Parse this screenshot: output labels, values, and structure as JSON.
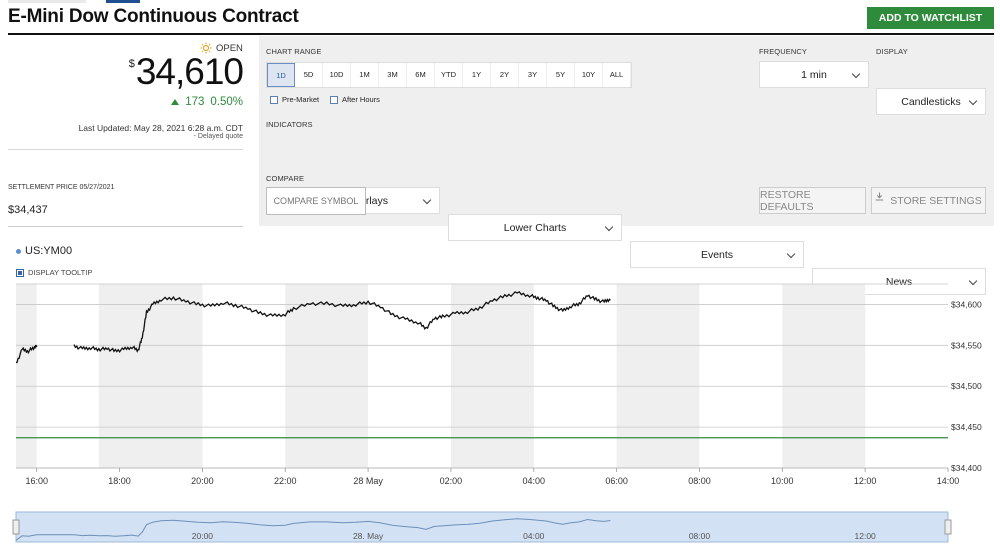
{
  "header": {
    "title": "E-Mini Dow Continuous Contract",
    "watchlist_button": "ADD TO WATCHLIST",
    "tab_colors": [
      "#e9e9e9",
      "#1d4f91"
    ]
  },
  "quote": {
    "status": "OPEN",
    "currency": "$",
    "price": "34,610",
    "change": "173",
    "change_pct": "0.50%",
    "last_updated": "Last Updated: May 28, 2021 6:28 a.m. CDT",
    "delayed": "- Delayed quote",
    "settlement_label": "SETTLEMENT PRICE 05/27/2021",
    "settlement_value": "$34,437",
    "up_color": "#2e8b3c"
  },
  "controls": {
    "chart_range_label": "CHART RANGE",
    "ranges": [
      "1D",
      "5D",
      "10D",
      "1M",
      "3M",
      "6M",
      "YTD",
      "1Y",
      "2Y",
      "3Y",
      "5Y",
      "10Y",
      "ALL"
    ],
    "active_range": "1D",
    "pre_market": "Pre-Market",
    "after_hours": "After Hours",
    "frequency_label": "FREQUENCY",
    "frequency_value": "1 min",
    "display_label": "DISPLAY",
    "display_value": "Candlesticks",
    "indicators_label": "INDICATORS",
    "indicators": [
      "Chart Overlays",
      "Lower Charts",
      "Events",
      "News"
    ],
    "compare_label": "COMPARE",
    "compare_placeholder": "COMPARE SYMBOL",
    "restore_defaults": "RESTORE DEFAULTS",
    "store_settings": "STORE SETTINGS"
  },
  "chart_header": {
    "symbol": "US:YM00",
    "display_tooltip": "DISPLAY TOOLTIP"
  },
  "chart_data": {
    "type": "line",
    "x_labels": [
      "16:00",
      "18:00",
      "20:00",
      "22:00",
      "28 May",
      "02:00",
      "04:00",
      "06:00",
      "08:00",
      "10:00",
      "12:00",
      "14:00"
    ],
    "y_ticks": [
      "$34,600",
      "$34,550",
      "$34,500",
      "$34,450",
      "$34,400"
    ],
    "y_tick_values": [
      34600,
      34550,
      34500,
      34450,
      34400
    ],
    "ylim": [
      34400,
      34625
    ],
    "x_hours_range": [
      15.5,
      38
    ],
    "reference_line": 34437,
    "reference_color": "#2e8b3c",
    "series": [
      {
        "values": [
          [
            15.5,
            34527
          ],
          [
            15.65,
            34545
          ],
          [
            15.8,
            34543
          ],
          [
            15.95,
            34548
          ],
          [
            16.0,
            34549
          ],
          [
            16.9,
            34549
          ],
          [
            17.1,
            34546
          ],
          [
            17.3,
            34547
          ],
          [
            17.5,
            34545
          ],
          [
            17.7,
            34546
          ],
          [
            17.9,
            34543
          ],
          [
            18.1,
            34545
          ],
          [
            18.3,
            34548
          ],
          [
            18.45,
            34544
          ],
          [
            18.55,
            34560
          ],
          [
            18.65,
            34590
          ],
          [
            18.8,
            34600
          ],
          [
            19.0,
            34606
          ],
          [
            19.3,
            34608
          ],
          [
            19.6,
            34604
          ],
          [
            19.9,
            34600
          ],
          [
            20.2,
            34598
          ],
          [
            20.5,
            34602
          ],
          [
            20.8,
            34599
          ],
          [
            21.1,
            34595
          ],
          [
            21.4,
            34589
          ],
          [
            21.7,
            34586
          ],
          [
            22.0,
            34588
          ],
          [
            22.2,
            34595
          ],
          [
            22.6,
            34601
          ],
          [
            23.0,
            34601
          ],
          [
            23.4,
            34598
          ],
          [
            23.7,
            34600
          ],
          [
            24.0,
            34603
          ],
          [
            24.3,
            34597
          ],
          [
            24.6,
            34587
          ],
          [
            24.9,
            34582
          ],
          [
            25.2,
            34578
          ],
          [
            25.4,
            34571
          ],
          [
            25.6,
            34583
          ],
          [
            25.8,
            34585
          ],
          [
            26.1,
            34589
          ],
          [
            26.4,
            34591
          ],
          [
            26.7,
            34596
          ],
          [
            27.0,
            34605
          ],
          [
            27.3,
            34610
          ],
          [
            27.6,
            34614
          ],
          [
            27.9,
            34611
          ],
          [
            28.1,
            34608
          ],
          [
            28.3,
            34605
          ],
          [
            28.5,
            34597
          ],
          [
            28.7,
            34592
          ],
          [
            28.9,
            34598
          ],
          [
            29.1,
            34601
          ],
          [
            29.3,
            34611
          ],
          [
            29.5,
            34606
          ],
          [
            29.7,
            34603
          ],
          [
            29.85,
            34607
          ]
        ]
      }
    ],
    "shaded_bands": [
      [
        15.5,
        16.0
      ],
      [
        17.5,
        20.0
      ],
      [
        22.0,
        24.0
      ],
      [
        26.0,
        28.0
      ],
      [
        30.0,
        32.0
      ],
      [
        34.0,
        36.0
      ]
    ]
  },
  "navigator": {
    "x_labels": [
      "20:00",
      "28. May",
      "04:00",
      "08:00",
      "12:00"
    ]
  }
}
